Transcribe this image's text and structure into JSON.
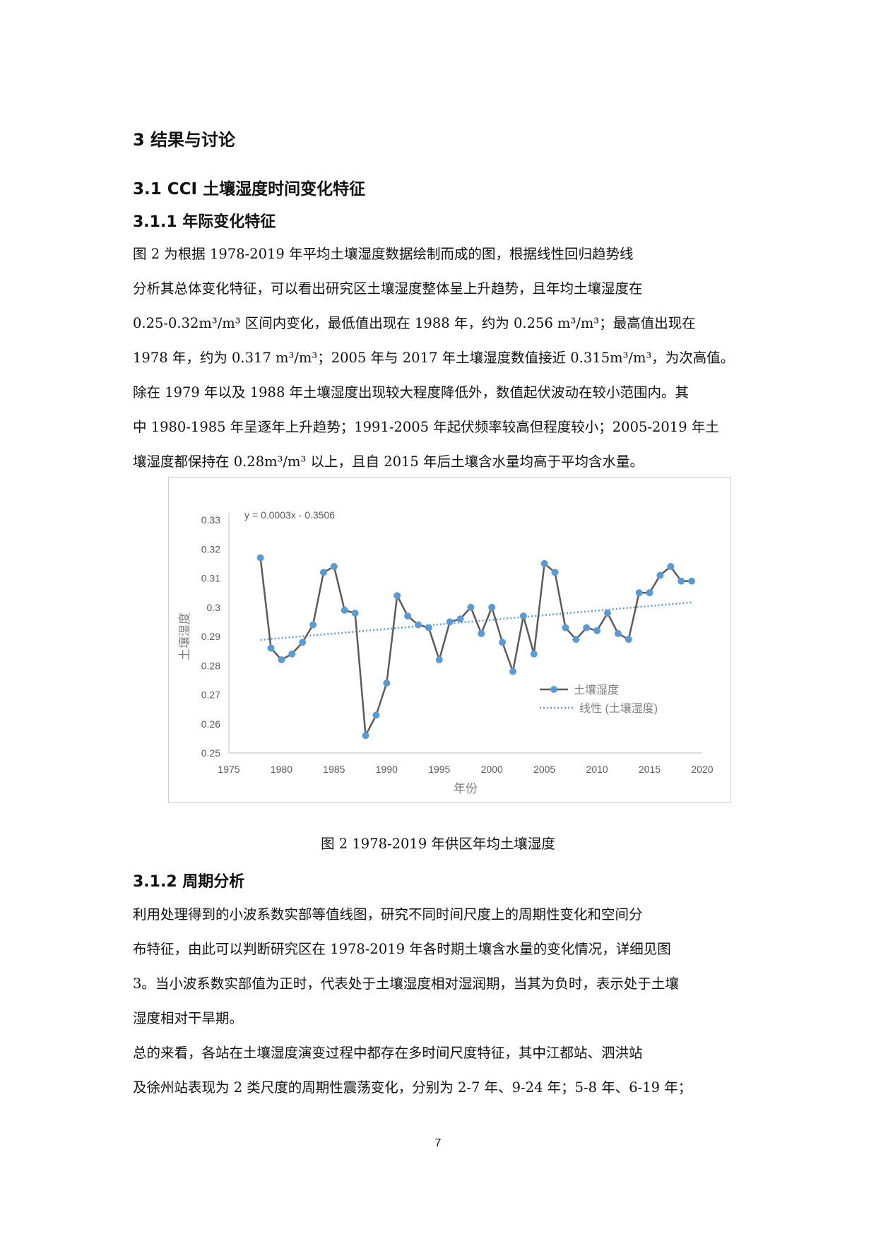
{
  "section": {
    "heading": "3  结果与讨论"
  },
  "subsection": {
    "heading": "3.1  CCI 土壤湿度时间变化特征"
  },
  "subsubsection1": {
    "heading": "3.1.1   年际变化特征"
  },
  "paragraph1": {
    "lines": [
      "        图 2 为根据 1978-2019 年平均土壤湿度数据绘制而成的图，根据线性回归趋势线",
      "分析其总体变化特征，可以看出研究区土壤湿度整体呈上升趋势，且年均土壤湿度在",
      "0.25-0.32m³/m³ 区间内变化，最低值出现在 1988 年，约为 0.256  m³/m³；最高值出现在",
      "1978 年，约为 0.317  m³/m³；2005 年与 2017 年土壤湿度数值接近 0.315m³/m³，为次高值。",
      "除在 1979 年以及 1988 年土壤湿度出现较大程度降低外，数值起伏波动在较小范围内。其",
      "中 1980-1985 年呈逐年上升趋势；1991-2005 年起伏频率较高但程度较小；2005-2019 年土",
      "壤湿度都保持在 0.28m³/m³ 以上，且自 2015 年后土壤含水量均高于平均含水量。"
    ]
  },
  "chart_data": {
    "type": "line",
    "title": "",
    "xlabel": "年份",
    "ylabel": "土壤湿度",
    "xlim": [
      1975,
      2020
    ],
    "ylim": [
      0.25,
      0.33
    ],
    "x_ticks": [
      "1975",
      "1980",
      "1985",
      "1990",
      "1995",
      "2000",
      "2005",
      "2010",
      "2015",
      "2020"
    ],
    "y_ticks": [
      "0.25",
      "0.26",
      "0.27",
      "0.28",
      "0.29",
      "0.3",
      "0.31",
      "0.32",
      "0.33"
    ],
    "grid": false,
    "legend_position": "bottom-right",
    "equation": "y = 0.0003x - 0.3506",
    "series": [
      {
        "name": "土壤湿度",
        "color": "#5b5b5b",
        "marker_color": "#5b9bd5",
        "x": [
          1978,
          1979,
          1980,
          1981,
          1982,
          1983,
          1984,
          1985,
          1986,
          1987,
          1988,
          1989,
          1990,
          1991,
          1992,
          1993,
          1994,
          1995,
          1996,
          1997,
          1998,
          1999,
          2000,
          2001,
          2002,
          2003,
          2004,
          2005,
          2006,
          2007,
          2008,
          2009,
          2010,
          2011,
          2012,
          2013,
          2014,
          2015,
          2016,
          2017,
          2018,
          2019
        ],
        "values": [
          0.317,
          0.286,
          0.282,
          0.284,
          0.288,
          0.294,
          0.312,
          0.314,
          0.299,
          0.298,
          0.256,
          0.263,
          0.274,
          0.304,
          0.297,
          0.294,
          0.293,
          0.282,
          0.295,
          0.296,
          0.3,
          0.291,
          0.3,
          0.288,
          0.278,
          0.297,
          0.284,
          0.315,
          0.312,
          0.293,
          0.289,
          0.293,
          0.292,
          0.298,
          0.291,
          0.289,
          0.305,
          0.305,
          0.311,
          0.314,
          0.309,
          0.309
        ]
      },
      {
        "name": "线性 (土壤湿度)",
        "color": "#5b9bd5",
        "x": [
          1978,
          2019
        ],
        "values": [
          0.2888,
          0.3017
        ]
      }
    ]
  },
  "figure": {
    "caption": "图 2    1978-2019 年供区年均土壤湿度"
  },
  "subsubsection2": {
    "heading": "3.1.2 周期分析"
  },
  "paragraph2": {
    "lines": [
      "    利用处理得到的小波系数实部等值线图，研究不同时间尺度上的周期性变化和空间分",
      "布特征，由此可以判断研究区在 1978-2019 年各时期土壤含水量的变化情况，详细见图",
      "3。当小波系数实部值为正时，代表处于土壤湿度相对湿润期，当其为负时，表示处于土壤",
      "湿度相对干旱期。"
    ]
  },
  "paragraph3": {
    "lines": [
      "    总的来看，各站在土壤湿度演变过程中都存在多时间尺度特征，其中江都站、泗洪站",
      "及徐州站表现为 2 类尺度的周期性震荡变化，分别为 2-7 年、9-24 年；5-8 年、6-19 年；"
    ]
  },
  "page": {
    "number": "7"
  }
}
